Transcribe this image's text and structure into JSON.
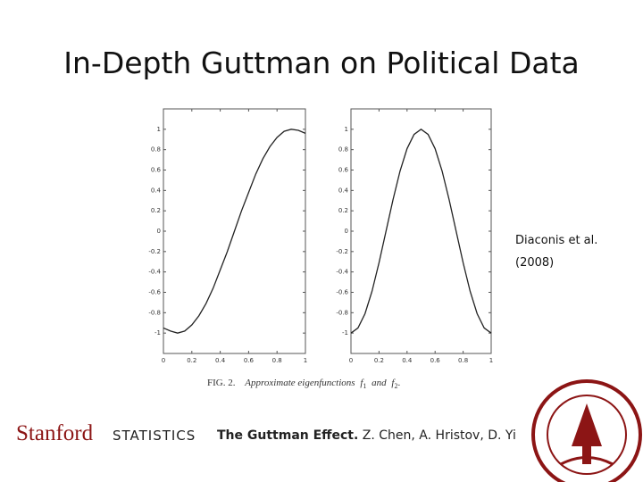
{
  "slide_title": "In-Depth Guttman on Political Data",
  "chart_data": [
    {
      "type": "line",
      "x": [
        0,
        0.05,
        0.1,
        0.15,
        0.2,
        0.25,
        0.3,
        0.35,
        0.4,
        0.45,
        0.5,
        0.55,
        0.6,
        0.65,
        0.7,
        0.75,
        0.8,
        0.85,
        0.9,
        0.95,
        1
      ],
      "values": [
        -0.95,
        -0.98,
        -1,
        -0.98,
        -0.92,
        -0.83,
        -0.71,
        -0.56,
        -0.38,
        -0.2,
        0,
        0.2,
        0.38,
        0.56,
        0.71,
        0.83,
        0.92,
        0.98,
        1,
        0.99,
        0.96
      ],
      "color": "#222",
      "xlim": [
        0,
        1
      ],
      "ylim": [
        -1.2,
        1.2
      ],
      "xticks": [
        0,
        0.2,
        0.4,
        0.6,
        0.8,
        1
      ],
      "yticks": [
        -1,
        -0.8,
        -0.6,
        -0.4,
        -0.2,
        0,
        0.2,
        0.4,
        0.6,
        0.8,
        1
      ]
    },
    {
      "type": "line",
      "x": [
        0,
        0.05,
        0.1,
        0.15,
        0.2,
        0.25,
        0.3,
        0.35,
        0.4,
        0.45,
        0.5,
        0.55,
        0.6,
        0.65,
        0.7,
        0.75,
        0.8,
        0.85,
        0.9,
        0.95,
        1
      ],
      "values": [
        -1,
        -0.95,
        -0.81,
        -0.59,
        -0.31,
        0,
        0.31,
        0.59,
        0.81,
        0.95,
        1,
        0.95,
        0.81,
        0.59,
        0.31,
        0,
        -0.31,
        -0.59,
        -0.81,
        -0.95,
        -1
      ],
      "color": "#222",
      "xlim": [
        0,
        1
      ],
      "ylim": [
        -1.2,
        1.2
      ],
      "xticks": [
        0,
        0.2,
        0.4,
        0.6,
        0.8,
        1
      ],
      "yticks": [
        -1,
        -0.8,
        -0.6,
        -0.4,
        -0.2,
        0,
        0.2,
        0.4,
        0.6,
        0.8,
        1
      ]
    }
  ],
  "caption": {
    "label": "FIG. 2.",
    "text": "Approximate eigenfunctions",
    "f_a": "f",
    "sub_a": "1",
    "and": "and",
    "f_b": "f",
    "sub_b": "2",
    "end": "."
  },
  "reference": {
    "line1": "Diaconis et al.",
    "line2": "(2008)"
  },
  "footer": {
    "brand": "Stanford",
    "department": "STATISTICS",
    "talk": "The Guttman Effect.",
    "authors": "Z. Chen, A. Hristov, D. Yi"
  }
}
